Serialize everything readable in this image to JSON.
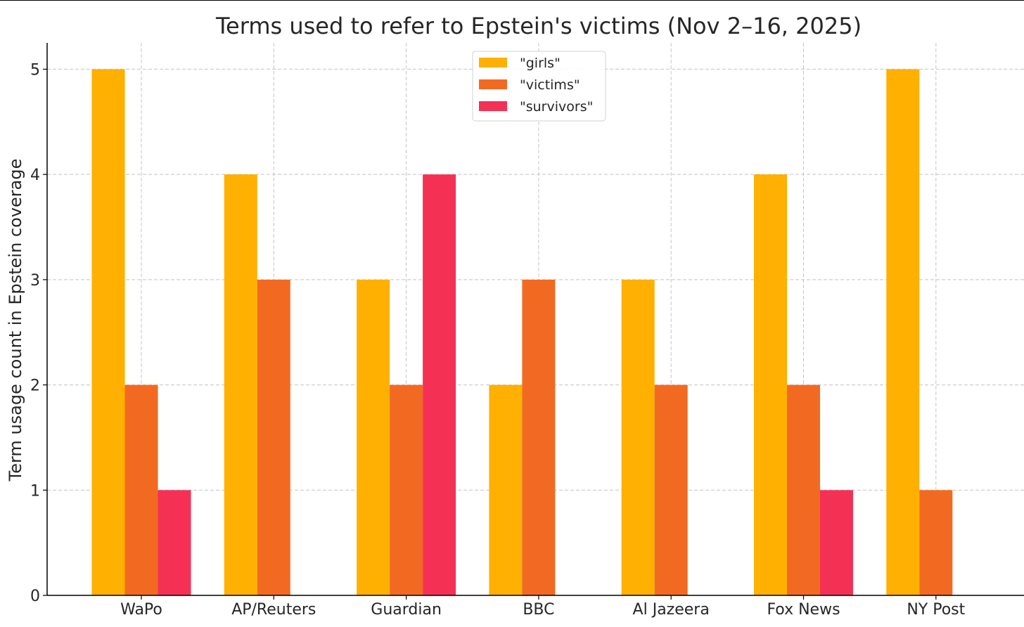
{
  "chart_data": {
    "type": "bar",
    "title": "Terms used to refer to Epstein's victims (Nov 2–16, 2025)",
    "xlabel": "",
    "ylabel": "Term usage count in Epstein coverage",
    "categories": [
      "WaPo",
      "AP/Reuters",
      "Guardian",
      "BBC",
      "Al Jazeera",
      "Fox News",
      "NY Post"
    ],
    "series": [
      {
        "name": "\"girls\"",
        "color": "#FFB000",
        "values": [
          5,
          4,
          3,
          2,
          3,
          4,
          5
        ]
      },
      {
        "name": "\"victims\"",
        "color": "#F26A21",
        "values": [
          2,
          3,
          2,
          3,
          2,
          2,
          1
        ]
      },
      {
        "name": "\"survivors\"",
        "color": "#F43155",
        "values": [
          1,
          0,
          4,
          0,
          0,
          1,
          0
        ]
      }
    ],
    "ylim": [
      0,
      5.25
    ],
    "yticks": [
      "0",
      "1",
      "2",
      "3",
      "4",
      "5"
    ],
    "grid": true,
    "legend": "top-center"
  }
}
